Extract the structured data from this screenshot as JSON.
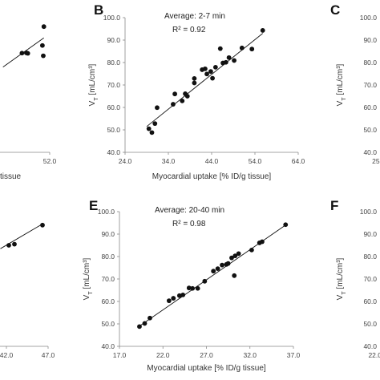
{
  "chart_data": [
    {
      "panel": "A",
      "type": "scatter",
      "panel_label": "",
      "xlabel": "tissue",
      "ylabel": "",
      "annotation_lines": [],
      "x_ticks": [
        "52.0"
      ],
      "y_ticks": [],
      "points": [
        [
          42.5,
          84.2
        ],
        [
          44.0,
          84.3
        ],
        [
          44.5,
          84.1
        ],
        [
          49.5,
          87.6
        ],
        [
          49.8,
          83.0
        ],
        [
          50.0,
          96.0
        ]
      ],
      "trendline": [
        [
          36.0,
          78.0
        ],
        [
          50.0,
          91.0
        ]
      ]
    },
    {
      "panel": "B",
      "type": "scatter",
      "panel_label": "B",
      "title": "Average: 2-7 min",
      "r2": "R² = 0.92",
      "xlabel": "Myocardial uptake [% ID/g tissue]",
      "ylabel_main": "V",
      "ylabel_sub": "T",
      "ylabel_rest": " [mL/cm³]",
      "xlim": [
        24.0,
        64.0
      ],
      "ylim": [
        40.0,
        100.0
      ],
      "x_ticks": [
        "24.0",
        "34.0",
        "44.0",
        "54.0",
        "64.0"
      ],
      "y_ticks": [
        "40.0",
        "50.0",
        "60.0",
        "70.0",
        "80.0",
        "90.0",
        "100.0"
      ],
      "points": [
        [
          29.5,
          50.5
        ],
        [
          30.2,
          48.8
        ],
        [
          30.9,
          52.8
        ],
        [
          31.4,
          59.9
        ],
        [
          35.1,
          61.4
        ],
        [
          35.5,
          66.0
        ],
        [
          37.2,
          62.9
        ],
        [
          37.9,
          66.1
        ],
        [
          38.4,
          65.0
        ],
        [
          40.0,
          72.9
        ],
        [
          40.0,
          70.9
        ],
        [
          41.8,
          76.8
        ],
        [
          42.5,
          77.2
        ],
        [
          42.9,
          74.9
        ],
        [
          43.8,
          76.0
        ],
        [
          44.2,
          73.0
        ],
        [
          44.9,
          77.9
        ],
        [
          46.0,
          86.2
        ],
        [
          46.6,
          79.8
        ],
        [
          47.3,
          80.1
        ],
        [
          48.0,
          82.2
        ],
        [
          49.2,
          80.9
        ],
        [
          51.0,
          86.5
        ],
        [
          53.3,
          86.0
        ],
        [
          55.8,
          94.3
        ]
      ],
      "trendline": [
        [
          29.0,
          51.5
        ],
        [
          55.8,
          93.0
        ]
      ]
    },
    {
      "panel": "C",
      "type": "scatter",
      "panel_label": "C",
      "ylabel_main": "V",
      "ylabel_sub": "T",
      "ylabel_rest": " [mL/cm³]",
      "y_ticks": [
        "40.0",
        "50.0",
        "60.0",
        "70.0",
        "80.0",
        "90.0",
        "100.0"
      ],
      "x_ticks": [
        "25."
      ],
      "points": []
    },
    {
      "panel": "D",
      "type": "scatter",
      "panel_label": "",
      "xlabel": "",
      "x_ticks": [
        "42.0",
        "47.0"
      ],
      "points": [
        [
          40.0,
          85.0
        ],
        [
          41.0,
          85.5
        ],
        [
          46.0,
          94.0
        ]
      ],
      "trendline": [
        [
          38.5,
          83.5
        ],
        [
          46.0,
          94.5
        ]
      ]
    },
    {
      "panel": "E",
      "type": "scatter",
      "panel_label": "E",
      "title": "Average: 20-40 min",
      "r2": "R² = 0.98",
      "xlabel": "Myocardial uptake [% ID/g tissue]",
      "ylabel_main": "V",
      "ylabel_sub": "T",
      "ylabel_rest": " [mL/cm³]",
      "xlim": [
        17.0,
        37.0
      ],
      "ylim": [
        40.0,
        100.0
      ],
      "x_ticks": [
        "17.0",
        "22.0",
        "27.0",
        "32.0",
        "37.0"
      ],
      "y_ticks": [
        "40.0",
        "50.0",
        "60.0",
        "70.0",
        "80.0",
        "90.0",
        "100.0"
      ],
      "points": [
        [
          19.3,
          48.8
        ],
        [
          19.9,
          50.2
        ],
        [
          20.5,
          52.6
        ],
        [
          22.7,
          60.3
        ],
        [
          23.2,
          61.4
        ],
        [
          23.9,
          62.6
        ],
        [
          24.3,
          62.9
        ],
        [
          25.0,
          66.0
        ],
        [
          25.4,
          65.8
        ],
        [
          26.0,
          65.8
        ],
        [
          26.8,
          69.0
        ],
        [
          27.8,
          73.5
        ],
        [
          28.3,
          74.6
        ],
        [
          28.8,
          76.2
        ],
        [
          29.3,
          76.5
        ],
        [
          29.5,
          76.9
        ],
        [
          29.9,
          79.4
        ],
        [
          30.3,
          80.3
        ],
        [
          30.2,
          71.5
        ],
        [
          30.7,
          81.3
        ],
        [
          32.2,
          82.9
        ],
        [
          33.1,
          86.1
        ],
        [
          33.4,
          86.6
        ],
        [
          36.1,
          94.2
        ]
      ],
      "trendline": [
        [
          19.3,
          49.0
        ],
        [
          36.1,
          94.0
        ]
      ]
    },
    {
      "panel": "F",
      "type": "scatter",
      "panel_label": "F",
      "ylabel_main": "V",
      "ylabel_sub": "T",
      "ylabel_rest": " [mL/cm³]",
      "y_ticks": [
        "40.0",
        "50.0",
        "60.0",
        "70.0",
        "80.0",
        "90.0",
        "100.0"
      ],
      "x_ticks": [
        "22.0"
      ],
      "points": []
    }
  ]
}
